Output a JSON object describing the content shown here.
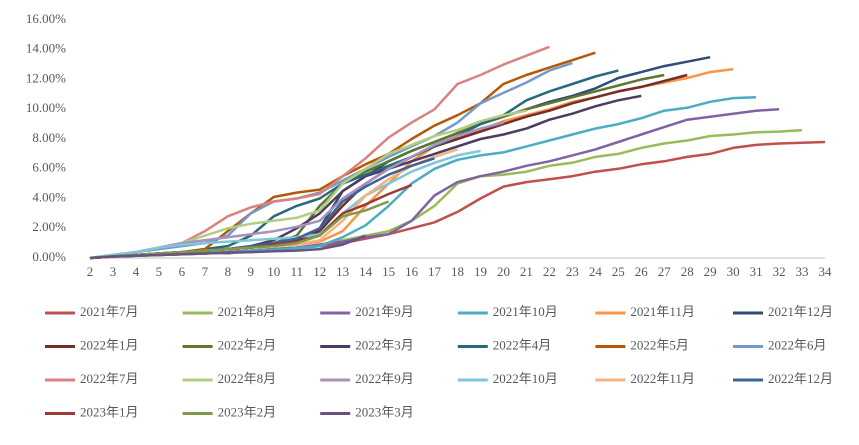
{
  "chart_data": {
    "type": "line",
    "x": [
      2,
      3,
      4,
      5,
      6,
      7,
      8,
      9,
      10,
      11,
      12,
      13,
      14,
      15,
      16,
      17,
      18,
      19,
      20,
      21,
      22,
      23,
      24,
      25,
      26,
      27,
      28,
      29,
      30,
      31,
      32,
      33,
      34
    ],
    "ylim": [
      0,
      16
    ],
    "yticks": [
      {
        "value": 0,
        "label": "0.00%"
      },
      {
        "value": 2,
        "label": "2.00%"
      },
      {
        "value": 4,
        "label": "4.00%"
      },
      {
        "value": 6,
        "label": "6.00%"
      },
      {
        "value": 8,
        "label": "8.00%"
      },
      {
        "value": 10,
        "label": "10.00%"
      },
      {
        "value": 12,
        "label": "12.00%"
      },
      {
        "value": 14,
        "label": "14.00%"
      },
      {
        "value": 16,
        "label": "16.00%"
      }
    ],
    "grid": false,
    "legend": "bottom",
    "series": [
      {
        "name": "2021年7月",
        "color": "#c0504d",
        "values": [
          0,
          0.1,
          0.15,
          0.2,
          0.25,
          0.3,
          0.4,
          0.5,
          0.6,
          0.7,
          0.8,
          1.0,
          1.3,
          1.6,
          2.0,
          2.4,
          3.1,
          4.0,
          4.8,
          5.1,
          5.3,
          5.5,
          5.8,
          6.0,
          6.3,
          6.5,
          6.8,
          7.0,
          7.4,
          7.6,
          7.7,
          7.75,
          7.8
        ]
      },
      {
        "name": "2021年8月",
        "color": "#9bbb59",
        "values": [
          0,
          0.1,
          0.15,
          0.2,
          0.25,
          0.3,
          0.4,
          0.5,
          0.6,
          0.7,
          0.9,
          1.2,
          1.5,
          1.8,
          2.5,
          3.5,
          5.0,
          5.5,
          5.6,
          5.8,
          6.2,
          6.4,
          6.8,
          7.0,
          7.4,
          7.7,
          7.9,
          8.2,
          8.3,
          8.45,
          8.5,
          8.6,
          null
        ]
      },
      {
        "name": "2021年9月",
        "color": "#8064a2",
        "values": [
          0,
          0.1,
          0.15,
          0.2,
          0.25,
          0.3,
          0.4,
          0.5,
          0.6,
          0.7,
          0.9,
          1.1,
          1.4,
          1.6,
          2.5,
          4.2,
          5.1,
          5.5,
          5.8,
          6.2,
          6.5,
          6.9,
          7.3,
          7.8,
          8.3,
          8.8,
          9.3,
          9.5,
          9.7,
          9.9,
          10.0,
          null,
          null
        ]
      },
      {
        "name": "2021年10月",
        "color": "#4bacc6",
        "values": [
          0,
          0.1,
          0.2,
          0.3,
          0.35,
          0.4,
          0.3,
          0.5,
          0.55,
          0.65,
          0.8,
          1.4,
          2.2,
          3.5,
          5.0,
          6.0,
          6.6,
          6.9,
          7.1,
          7.5,
          7.9,
          8.3,
          8.7,
          9.0,
          9.4,
          9.9,
          10.1,
          10.5,
          10.75,
          10.8,
          null,
          null,
          null
        ]
      },
      {
        "name": "2021年11月",
        "color": "#f79646",
        "values": [
          0,
          0.1,
          0.2,
          0.3,
          0.4,
          0.5,
          0.6,
          0.7,
          0.8,
          0.9,
          1.1,
          1.8,
          3.5,
          5.0,
          6.5,
          7.5,
          8.0,
          8.6,
          9.2,
          9.6,
          10.0,
          10.5,
          10.8,
          11.2,
          11.5,
          11.8,
          12.1,
          12.5,
          12.7,
          null,
          null,
          null,
          null
        ]
      },
      {
        "name": "2021年12月",
        "color": "#2c4d75",
        "values": [
          0,
          0.1,
          0.2,
          0.3,
          0.4,
          0.5,
          0.6,
          0.7,
          0.9,
          1.2,
          2.0,
          4.5,
          5.5,
          6.5,
          7.2,
          7.8,
          8.4,
          9.0,
          9.5,
          10.0,
          10.5,
          10.9,
          11.4,
          12.1,
          12.5,
          12.9,
          13.2,
          13.5,
          null,
          null,
          null,
          null,
          null
        ]
      },
      {
        "name": "2022年1月",
        "color": "#772c2a",
        "values": [
          0,
          0.1,
          0.2,
          0.3,
          0.4,
          0.5,
          0.6,
          0.7,
          0.9,
          1.2,
          1.8,
          3.5,
          5.0,
          6.0,
          6.8,
          7.5,
          8.0,
          8.5,
          9.0,
          9.5,
          9.9,
          10.4,
          10.8,
          11.2,
          11.5,
          11.9,
          12.3,
          null,
          null,
          null,
          null,
          null,
          null
        ]
      },
      {
        "name": "2022年2月",
        "color": "#5f7530",
        "values": [
          0,
          0.1,
          0.2,
          0.3,
          0.4,
          0.5,
          0.6,
          0.8,
          1.0,
          1.5,
          3.5,
          5.0,
          5.8,
          6.5,
          7.2,
          7.8,
          8.4,
          9.0,
          9.5,
          10.0,
          10.4,
          10.8,
          11.2,
          11.6,
          12.0,
          12.3,
          null,
          null,
          null,
          null,
          null,
          null,
          null
        ]
      },
      {
        "name": "2022年3月",
        "color": "#4d3b62",
        "values": [
          0,
          0.1,
          0.2,
          0.3,
          0.4,
          0.5,
          0.6,
          0.8,
          1.2,
          2.0,
          3.0,
          4.5,
          5.5,
          6.0,
          6.5,
          7.0,
          7.5,
          8.0,
          8.3,
          8.7,
          9.3,
          9.7,
          10.2,
          10.6,
          10.9,
          null,
          null,
          null,
          null,
          null,
          null,
          null,
          null
        ]
      },
      {
        "name": "2022年4月",
        "color": "#276a7c",
        "values": [
          0,
          0.1,
          0.2,
          0.3,
          0.4,
          0.6,
          0.8,
          1.5,
          2.8,
          3.5,
          4.0,
          5.0,
          5.6,
          6.2,
          6.8,
          7.5,
          8.2,
          9.0,
          9.6,
          10.6,
          11.2,
          11.7,
          12.2,
          12.6,
          null,
          null,
          null,
          null,
          null,
          null,
          null,
          null,
          null
        ]
      },
      {
        "name": "2022年5月",
        "color": "#b65708",
        "values": [
          0,
          0.1,
          0.2,
          0.3,
          0.4,
          0.6,
          1.8,
          3.0,
          4.1,
          4.4,
          4.6,
          5.5,
          6.3,
          7.0,
          8.0,
          8.9,
          9.6,
          10.4,
          11.7,
          12.3,
          12.8,
          13.3,
          13.8,
          null,
          null,
          null,
          null,
          null,
          null,
          null,
          null,
          null,
          null
        ]
      },
      {
        "name": "2022年6月",
        "color": "#729aca",
        "values": [
          0,
          0.2,
          0.4,
          0.6,
          0.8,
          1.0,
          1.5,
          3.0,
          3.8,
          4.0,
          4.4,
          5.2,
          6.0,
          6.8,
          7.5,
          8.2,
          9.1,
          10.4,
          11.1,
          11.8,
          12.6,
          13.1,
          null,
          null,
          null,
          null,
          null,
          null,
          null,
          null,
          null,
          null,
          null
        ]
      },
      {
        "name": "2022年7月",
        "color": "#d9827f",
        "values": [
          0,
          0.2,
          0.4,
          0.7,
          1.0,
          1.8,
          2.8,
          3.4,
          3.8,
          4.0,
          4.3,
          5.5,
          6.7,
          8.1,
          9.1,
          10.0,
          11.7,
          12.3,
          13.0,
          13.6,
          14.2,
          null,
          null,
          null,
          null,
          null,
          null,
          null,
          null,
          null,
          null,
          null,
          null
        ]
      },
      {
        "name": "2022年8月",
        "color": "#b4cc82",
        "values": [
          0,
          0.2,
          0.4,
          0.7,
          1.0,
          1.5,
          2.0,
          2.3,
          2.5,
          2.7,
          3.2,
          5.0,
          6.0,
          7.0,
          7.6,
          8.2,
          8.6,
          9.2,
          9.6,
          9.9,
          null,
          null,
          null,
          null,
          null,
          null,
          null,
          null,
          null,
          null,
          null,
          null,
          null
        ]
      },
      {
        "name": "2022年9月",
        "color": "#a692bb",
        "values": [
          0,
          0.2,
          0.4,
          0.7,
          1.0,
          1.2,
          1.4,
          1.6,
          1.8,
          2.1,
          2.5,
          4.0,
          5.0,
          6.0,
          6.8,
          7.6,
          8.2,
          8.7,
          9.1,
          null,
          null,
          null,
          null,
          null,
          null,
          null,
          null,
          null,
          null,
          null,
          null,
          null,
          null
        ]
      },
      {
        "name": "2022年10月",
        "color": "#7fc6d9",
        "values": [
          0,
          0.2,
          0.4,
          0.7,
          0.9,
          1.0,
          1.1,
          1.2,
          1.3,
          1.4,
          1.6,
          3.0,
          4.2,
          5.0,
          5.8,
          6.4,
          6.9,
          7.2,
          null,
          null,
          null,
          null,
          null,
          null,
          null,
          null,
          null,
          null,
          null,
          null,
          null,
          null,
          null
        ]
      },
      {
        "name": "2022年11月",
        "color": "#f9b27f",
        "values": [
          0,
          0.1,
          0.2,
          0.3,
          0.4,
          0.5,
          0.6,
          0.7,
          0.8,
          0.9,
          1.2,
          2.5,
          4.2,
          5.3,
          6.2,
          6.8,
          7.3,
          null,
          null,
          null,
          null,
          null,
          null,
          null,
          null,
          null,
          null,
          null,
          null,
          null,
          null,
          null,
          null
        ]
      },
      {
        "name": "2022年12月",
        "color": "#3a6497",
        "values": [
          0,
          0.1,
          0.2,
          0.3,
          0.4,
          0.5,
          0.6,
          0.8,
          1.0,
          1.3,
          2.0,
          3.8,
          4.8,
          5.6,
          6.2,
          6.7,
          null,
          null,
          null,
          null,
          null,
          null,
          null,
          null,
          null,
          null,
          null,
          null,
          null,
          null,
          null,
          null,
          null
        ]
      },
      {
        "name": "2023年1月",
        "color": "#9c3a38",
        "values": [
          0,
          0.1,
          0.2,
          0.3,
          0.4,
          0.5,
          0.6,
          0.7,
          0.9,
          1.1,
          1.5,
          3.0,
          3.6,
          4.3,
          4.9,
          null,
          null,
          null,
          null,
          null,
          null,
          null,
          null,
          null,
          null,
          null,
          null,
          null,
          null,
          null,
          null,
          null,
          null
        ]
      },
      {
        "name": "2023年2月",
        "color": "#7f9a48",
        "values": [
          0,
          0.1,
          0.2,
          0.3,
          0.4,
          0.5,
          0.6,
          0.7,
          0.8,
          1.0,
          1.5,
          2.8,
          3.2,
          3.8,
          null,
          null,
          null,
          null,
          null,
          null,
          null,
          null,
          null,
          null,
          null,
          null,
          null,
          null,
          null,
          null,
          null,
          null,
          null
        ]
      },
      {
        "name": "2023年3月",
        "color": "#69527f",
        "values": [
          0,
          0.1,
          0.15,
          0.2,
          0.25,
          0.3,
          0.35,
          0.4,
          0.45,
          0.5,
          0.6,
          0.9,
          1.5,
          null,
          null,
          null,
          null,
          null,
          null,
          null,
          null,
          null,
          null,
          null,
          null,
          null,
          null,
          null,
          null,
          null,
          null,
          null,
          null
        ]
      }
    ]
  }
}
